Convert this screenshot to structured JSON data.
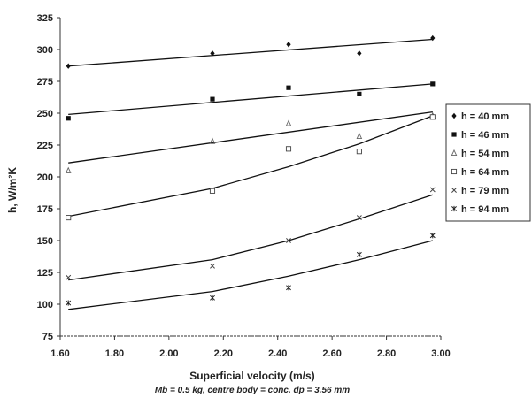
{
  "chart_data": {
    "type": "scatter",
    "xlabel": "Superficial velocity (m/s)",
    "ylabel": "h, W/m²K",
    "caption": "Mb = 0.5 kg, centre body = conc. dp = 3.56 mm",
    "xlim": [
      1.6,
      3.0
    ],
    "ylim": [
      75,
      325
    ],
    "x_ticks": [
      "1.60",
      "1.80",
      "2.00",
      "2.20",
      "2.40",
      "2.60",
      "2.80",
      "3.00"
    ],
    "y_ticks": [
      "75",
      "100",
      "125",
      "150",
      "175",
      "200",
      "225",
      "250",
      "275",
      "300",
      "325"
    ],
    "legend_position": "right",
    "grid": false,
    "series": [
      {
        "name": "h = 40 mm",
        "marker": "diamond",
        "x": [
          1.63,
          2.16,
          2.44,
          2.7,
          2.97
        ],
        "y": [
          287,
          297,
          304,
          297,
          309
        ],
        "trend": [
          [
            1.63,
            287
          ],
          [
            2.97,
            308
          ]
        ]
      },
      {
        "name": "h = 46 mm",
        "marker": "square",
        "x": [
          1.63,
          2.16,
          2.44,
          2.7,
          2.97
        ],
        "y": [
          246,
          261,
          270,
          265,
          273
        ],
        "trend": [
          [
            1.63,
            249
          ],
          [
            2.97,
            273
          ]
        ]
      },
      {
        "name": "h = 54 mm",
        "marker": "triangle-open",
        "x": [
          1.63,
          2.16,
          2.44,
          2.7,
          2.97
        ],
        "y": [
          205,
          228,
          242,
          232,
          248
        ],
        "trend": [
          [
            1.63,
            211
          ],
          [
            2.97,
            251
          ]
        ]
      },
      {
        "name": "h = 64 mm",
        "marker": "square-open",
        "x": [
          1.63,
          2.16,
          2.44,
          2.7,
          2.97
        ],
        "y": [
          168,
          189,
          222,
          220,
          247
        ],
        "trend": [
          [
            1.63,
            169
          ],
          [
            2.16,
            191
          ],
          [
            2.44,
            208
          ],
          [
            2.7,
            226
          ],
          [
            2.97,
            248
          ]
        ]
      },
      {
        "name": "h = 79 mm",
        "marker": "cross",
        "x": [
          1.63,
          2.16,
          2.44,
          2.7,
          2.97
        ],
        "y": [
          121,
          130,
          150,
          168,
          190
        ],
        "trend": [
          [
            1.63,
            119
          ],
          [
            2.16,
            135
          ],
          [
            2.44,
            150
          ],
          [
            2.7,
            167
          ],
          [
            2.97,
            186
          ]
        ]
      },
      {
        "name": "h = 94 mm",
        "marker": "star",
        "x": [
          1.63,
          2.16,
          2.44,
          2.7,
          2.97
        ],
        "y": [
          101,
          105,
          113,
          139,
          154
        ],
        "trend": [
          [
            1.63,
            96
          ],
          [
            2.16,
            110
          ],
          [
            2.44,
            122
          ],
          [
            2.7,
            135
          ],
          [
            2.97,
            150
          ]
        ]
      }
    ]
  }
}
